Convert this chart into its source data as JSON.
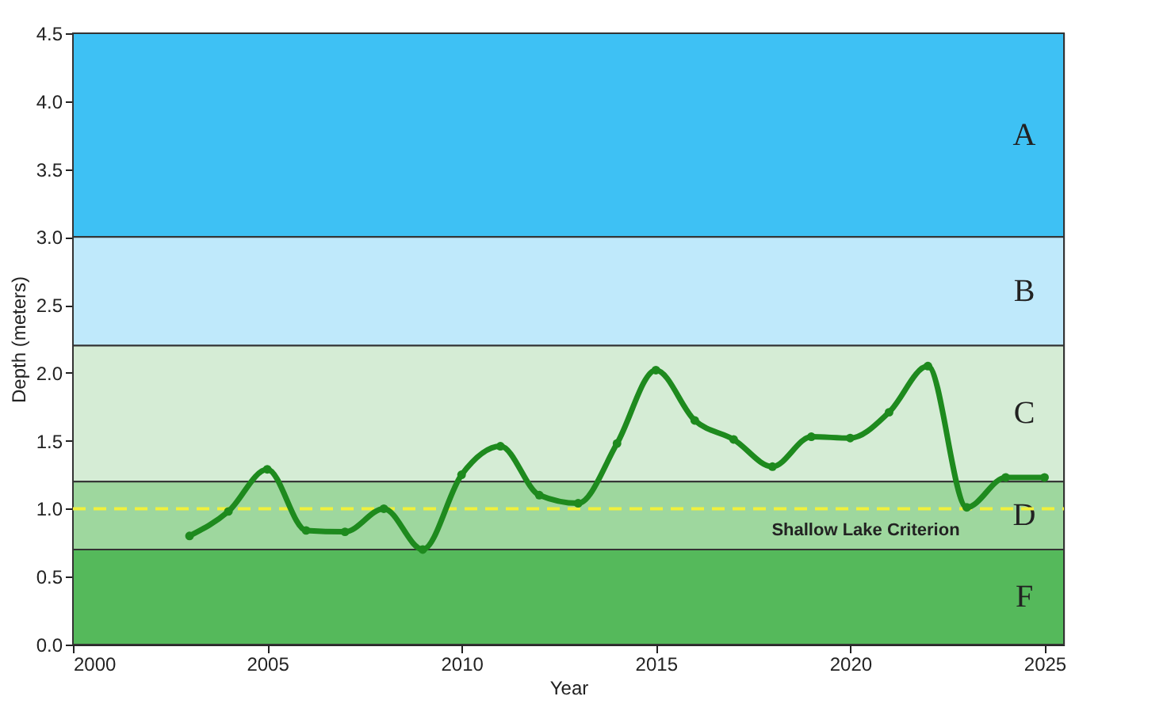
{
  "chart_data": {
    "type": "line",
    "xlabel": "Year",
    "ylabel": "Depth (meters)",
    "x": [
      2003,
      2004,
      2005,
      2006,
      2007,
      2008,
      2009,
      2010,
      2011,
      2012,
      2013,
      2014,
      2015,
      2016,
      2017,
      2018,
      2019,
      2020,
      2021,
      2022,
      2023,
      2024,
      2025
    ],
    "series": [
      {
        "color": "#1e8a1e",
        "values": [
          0.8,
          0.98,
          1.29,
          0.84,
          0.83,
          1.0,
          0.7,
          1.25,
          1.46,
          1.1,
          1.04,
          1.48,
          2.02,
          1.65,
          1.51,
          1.31,
          1.53,
          1.52,
          1.71,
          2.05,
          1.01,
          1.23,
          1.23
        ]
      }
    ],
    "xlim": [
      2000,
      2025.5
    ],
    "xticks": [
      2000,
      2005,
      2010,
      2015,
      2020,
      2025
    ],
    "ylim": [
      0,
      4.5
    ],
    "yticks": [
      {
        "value": 0,
        "label": "0.0"
      },
      {
        "value": 0.5,
        "label": "0.5"
      },
      {
        "value": 1,
        "label": "1.0"
      },
      {
        "value": 1.5,
        "label": "1.5"
      },
      {
        "value": 2,
        "label": "2.0"
      },
      {
        "value": 2.5,
        "label": "2.5"
      },
      {
        "value": 3,
        "label": "3.0"
      },
      {
        "value": 3.5,
        "label": "3.5"
      },
      {
        "value": 4,
        "label": "4.0"
      },
      {
        "value": 4.5,
        "label": "4.5"
      }
    ],
    "bands": [
      {
        "axis": "y",
        "from": 3.0,
        "to": 4.5,
        "label": "A",
        "color": "#3ec1f4"
      },
      {
        "axis": "y",
        "from": 2.2,
        "to": 3.0,
        "label": "B",
        "color": "#bfe9fb"
      },
      {
        "axis": "y",
        "from": 1.2,
        "to": 2.2,
        "label": "C",
        "color": "#d5ecd5"
      },
      {
        "axis": "y",
        "from": 0.7,
        "to": 1.2,
        "label": "D",
        "color": "#9ed79e"
      },
      {
        "axis": "y",
        "from": 0,
        "to": 0.7,
        "label": "F",
        "color": "#55b95b"
      }
    ],
    "ref_lines": [
      {
        "axis": "y",
        "value": 1.0,
        "label": "Shallow Lake Criterion",
        "color": "#f0f03c",
        "line_style": "dashed"
      }
    ],
    "marker": "circle",
    "line_style": "solid"
  }
}
